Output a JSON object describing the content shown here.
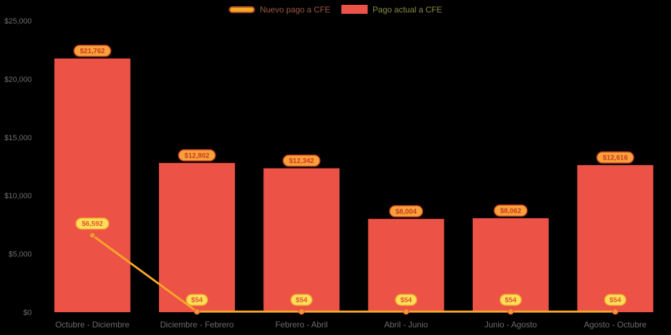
{
  "chart": {
    "background": "#000000",
    "style": {
      "axis_label_color": "#6f6f6f",
      "bar_label_pill": {
        "bg": "#f9a13a",
        "border": "#cf4427",
        "text": "#c83a22"
      },
      "line_label_pill": {
        "bg": "#fcdf59",
        "border": "#f09f2c",
        "text": "#e2542e"
      },
      "marker": {
        "fill": "#f4953a",
        "stroke": "#e2542e"
      }
    },
    "legend": {
      "items": [
        {
          "label": "Nuevo pago a CFE",
          "series": "line",
          "swatch_color": "#f7a828",
          "swatch_border": "#a84a22",
          "label_color": "#9c5a43"
        },
        {
          "label": "Pago actual a CFE",
          "series": "bar",
          "swatch_color": "#ec5245",
          "swatch_border": "#ec5245",
          "label_color": "#8c8c4a"
        }
      ]
    }
  },
  "chart_data": {
    "type": "bar",
    "subtype": "columns-with-line-overlay",
    "title": "",
    "xlabel": "",
    "ylabel": "",
    "categories": [
      "Octubre - Diciembre",
      "Diciembre - Febrero",
      "Febrero - Abril",
      "Abril - Junio",
      "Junio - Agosto",
      "Agosto - Octubre"
    ],
    "series": [
      {
        "name": "Pago actual a CFE",
        "type": "bar",
        "color": "#ec5245",
        "values": [
          21762,
          12802,
          12342,
          8004,
          8062,
          12616
        ],
        "data_labels": [
          "$21,762",
          "$12,802",
          "$12,342",
          "$8,004",
          "$8,062",
          "$12,616"
        ]
      },
      {
        "name": "Nuevo pago a CFE",
        "type": "line",
        "color": "#f7a828",
        "values": [
          6592,
          54,
          54,
          54,
          54,
          54
        ],
        "data_labels": [
          "$6,592",
          "$54",
          "$54",
          "$54",
          "$54",
          "$54"
        ]
      }
    ],
    "yaxis": {
      "min": 0,
      "max": 25000,
      "tick_interval": 5000,
      "tick_labels": [
        "$0",
        "$5,000",
        "$10,000",
        "$15,000",
        "$20,000",
        "$25,000"
      ]
    },
    "grid": false,
    "legend_position": "top-center",
    "plot_background": "black"
  }
}
